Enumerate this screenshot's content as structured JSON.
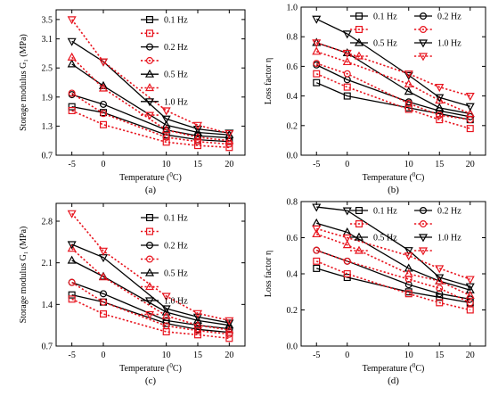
{
  "chart_data": [
    {
      "type": "line",
      "panel_label": "(a)",
      "xlabel_main": "Temperature (",
      "xlabel_sup": "0",
      "xlabel_end": "C)",
      "ylabel": "Storage modulus G₁ (MPa)",
      "x": [
        -5,
        0,
        10,
        15,
        20
      ],
      "xticks": [
        "-5",
        "0",
        "10",
        "15",
        "20"
      ],
      "ylim": [
        0.7,
        3.7
      ],
      "yticks": [
        0.7,
        1.3,
        1.9,
        2.5,
        3.1,
        3.5
      ],
      "legend_placement": "top-right",
      "series": [
        {
          "name": "0.1  Hz",
          "style": "solid",
          "marker": "square",
          "color": "#000000",
          "values": [
            1.7,
            1.58,
            1.12,
            1.02,
            0.98
          ]
        },
        {
          "name": "",
          "style": "dotted",
          "marker": "square",
          "color": "#e8141e",
          "values": [
            1.62,
            1.33,
            0.97,
            0.9,
            0.86
          ]
        },
        {
          "name": "0.2  Hz",
          "style": "solid",
          "marker": "circle",
          "color": "#000000",
          "values": [
            1.95,
            1.75,
            1.22,
            1.1,
            1.06
          ]
        },
        {
          "name": "",
          "style": "dotted",
          "marker": "circle",
          "color": "#e8141e",
          "values": [
            1.98,
            1.56,
            1.07,
            0.98,
            0.93
          ]
        },
        {
          "name": "0.5  Hz",
          "style": "solid",
          "marker": "triangle-up",
          "color": "#000000",
          "values": [
            2.58,
            2.13,
            1.32,
            1.17,
            1.12
          ]
        },
        {
          "name": "",
          "style": "dotted",
          "marker": "triangle-up",
          "color": "#e8141e",
          "values": [
            2.72,
            2.08,
            1.22,
            1.07,
            1.0
          ]
        },
        {
          "name": "1.0  Hz",
          "style": "solid",
          "marker": "triangle-down",
          "color": "#000000",
          "values": [
            3.05,
            2.63,
            1.45,
            1.24,
            1.16
          ]
        },
        {
          "name": "",
          "style": "dotted",
          "marker": "triangle-down",
          "color": "#e8141e",
          "values": [
            3.5,
            2.63,
            1.62,
            1.32,
            1.15
          ]
        }
      ]
    },
    {
      "type": "line",
      "panel_label": "(b)",
      "xlabel_main": "Temperature (",
      "xlabel_sup": "0",
      "xlabel_end": "C)",
      "ylabel": "Loss factor η",
      "x": [
        -5,
        0,
        10,
        15,
        20
      ],
      "xticks": [
        "-5",
        "0",
        "10",
        "15",
        "20"
      ],
      "ylim": [
        0.0,
        1.0
      ],
      "yticks": [
        0.0,
        0.2,
        0.4,
        0.6,
        0.8,
        1.0
      ],
      "legend_placement": "top-center, two columns",
      "series": [
        {
          "name": "0.1  Hz",
          "style": "solid",
          "marker": "square",
          "color": "#000000",
          "values": [
            0.49,
            0.4,
            0.32,
            0.28,
            0.24
          ]
        },
        {
          "name": "",
          "style": "dotted",
          "marker": "square",
          "color": "#e8141e",
          "values": [
            0.55,
            0.46,
            0.31,
            0.24,
            0.18
          ]
        },
        {
          "name": "0.2  Hz",
          "style": "solid",
          "marker": "circle",
          "color": "#000000",
          "values": [
            0.61,
            0.51,
            0.36,
            0.3,
            0.26
          ]
        },
        {
          "name": "",
          "style": "dotted",
          "marker": "circle",
          "color": "#e8141e",
          "values": [
            0.62,
            0.55,
            0.35,
            0.27,
            0.24
          ]
        },
        {
          "name": "0.5  Hz",
          "style": "solid",
          "marker": "triangle-up",
          "color": "#000000",
          "values": [
            0.76,
            0.69,
            0.43,
            0.32,
            0.28
          ]
        },
        {
          "name": "",
          "style": "dotted",
          "marker": "triangle-up",
          "color": "#e8141e",
          "values": [
            0.7,
            0.63,
            0.48,
            0.37,
            0.28
          ]
        },
        {
          "name": "1.0  Hz",
          "style": "solid",
          "marker": "triangle-down",
          "color": "#000000",
          "values": [
            0.92,
            0.82,
            0.54,
            0.39,
            0.33
          ]
        },
        {
          "name": "",
          "style": "dotted",
          "marker": "triangle-down",
          "color": "#e8141e",
          "values": [
            0.76,
            0.69,
            0.55,
            0.46,
            0.4
          ]
        }
      ]
    },
    {
      "type": "line",
      "panel_label": "(c)",
      "xlabel_main": "Temperature (",
      "xlabel_sup": "0",
      "xlabel_end": "C)",
      "ylabel": "Storage modulus G₁ (MPa)",
      "x": [
        -5,
        0,
        10,
        15,
        20
      ],
      "xticks": [
        "-5",
        "0",
        "10",
        "15",
        "20"
      ],
      "ylim": [
        0.7,
        3.1
      ],
      "yticks": [
        0.7,
        1.4,
        2.1,
        2.8
      ],
      "legend_placement": "top-right",
      "series": [
        {
          "name": "0.1  Hz",
          "style": "solid",
          "marker": "square",
          "color": "#000000",
          "values": [
            1.56,
            1.44,
            1.08,
            0.98,
            0.93
          ]
        },
        {
          "name": "",
          "style": "dotted",
          "marker": "square",
          "color": "#e8141e",
          "values": [
            1.49,
            1.24,
            0.94,
            0.89,
            0.83
          ]
        },
        {
          "name": "0.2  Hz",
          "style": "solid",
          "marker": "circle",
          "color": "#000000",
          "values": [
            1.77,
            1.58,
            1.13,
            1.05,
            0.99
          ]
        },
        {
          "name": "",
          "style": "dotted",
          "marker": "circle",
          "color": "#e8141e",
          "values": [
            1.77,
            1.44,
            1.04,
            0.96,
            0.9
          ]
        },
        {
          "name": "0.5  Hz",
          "style": "solid",
          "marker": "triangle-up",
          "color": "#000000",
          "values": [
            2.14,
            1.87,
            1.27,
            1.13,
            1.05
          ]
        },
        {
          "name": "",
          "style": "dotted",
          "marker": "triangle-up",
          "color": "#e8141e",
          "values": [
            2.34,
            1.86,
            1.21,
            1.05,
            0.97
          ]
        },
        {
          "name": "1.0  Hz",
          "style": "solid",
          "marker": "triangle-down",
          "color": "#000000",
          "values": [
            2.41,
            2.19,
            1.33,
            1.19,
            1.09
          ]
        },
        {
          "name": "",
          "style": "dotted",
          "marker": "triangle-down",
          "color": "#e8141e",
          "values": [
            2.93,
            2.3,
            1.54,
            1.25,
            1.13
          ]
        }
      ]
    },
    {
      "type": "line",
      "panel_label": "(d)",
      "xlabel_main": "Temperature (",
      "xlabel_sup": "0",
      "xlabel_end": "C)",
      "ylabel": "Loss factor η",
      "x": [
        -5,
        0,
        10,
        15,
        20
      ],
      "xticks": [
        "-5",
        "0",
        "10",
        "15",
        "20"
      ],
      "ylim": [
        0.0,
        0.8
      ],
      "yticks": [
        0.0,
        0.2,
        0.4,
        0.6,
        0.8
      ],
      "legend_placement": "top-center, two columns",
      "series": [
        {
          "name": "0.1  Hz",
          "style": "solid",
          "marker": "square",
          "color": "#000000",
          "values": [
            0.43,
            0.38,
            0.3,
            0.27,
            0.24
          ]
        },
        {
          "name": "",
          "style": "dotted",
          "marker": "square",
          "color": "#e8141e",
          "values": [
            0.47,
            0.4,
            0.29,
            0.24,
            0.2
          ]
        },
        {
          "name": "0.2  Hz",
          "style": "solid",
          "marker": "circle",
          "color": "#000000",
          "values": [
            0.53,
            0.47,
            0.34,
            0.29,
            0.26
          ]
        },
        {
          "name": "",
          "style": "dotted",
          "marker": "circle",
          "color": "#e8141e",
          "values": [
            0.53,
            0.47,
            0.37,
            0.32,
            0.24
          ]
        },
        {
          "name": "0.5  Hz",
          "style": "solid",
          "marker": "triangle-up",
          "color": "#000000",
          "values": [
            0.68,
            0.63,
            0.43,
            0.36,
            0.31
          ]
        },
        {
          "name": "",
          "style": "dotted",
          "marker": "triangle-up",
          "color": "#e8141e",
          "values": [
            0.62,
            0.56,
            0.4,
            0.36,
            0.28
          ]
        },
        {
          "name": "1.0  Hz",
          "style": "solid",
          "marker": "triangle-down",
          "color": "#000000",
          "values": [
            0.77,
            0.75,
            0.53,
            0.38,
            0.33
          ]
        },
        {
          "name": "",
          "style": "dotted",
          "marker": "triangle-down",
          "color": "#e8141e",
          "values": [
            0.65,
            0.6,
            0.5,
            0.43,
            0.37
          ]
        }
      ]
    }
  ]
}
